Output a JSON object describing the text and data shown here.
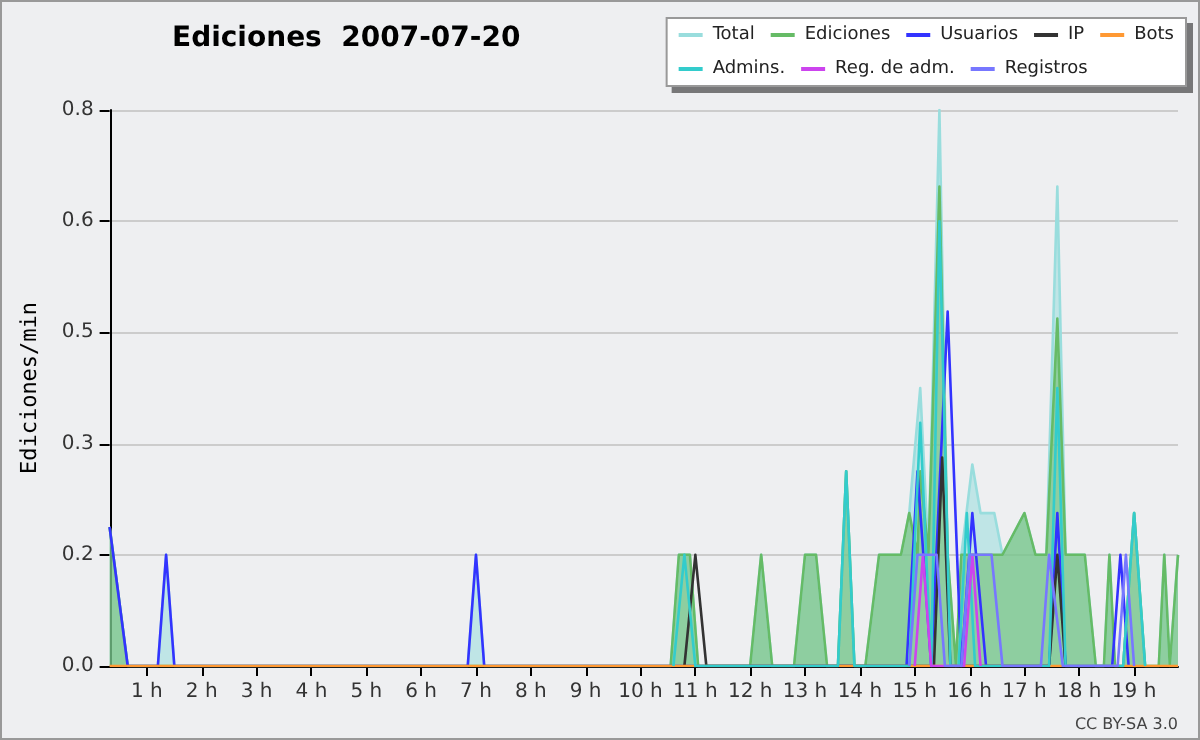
{
  "chart_data": {
    "type": "line",
    "title": "Ediciones  2007-07-20",
    "ylabel": "Ediciones/min",
    "xlim": [
      0.32,
      19.8
    ],
    "ylim": [
      0,
      0.8
    ],
    "xticks": [
      {
        "value": 1,
        "label": "1 h"
      },
      {
        "value": 2,
        "label": "2 h"
      },
      {
        "value": 3,
        "label": "3 h"
      },
      {
        "value": 4,
        "label": "4 h"
      },
      {
        "value": 5,
        "label": "5 h"
      },
      {
        "value": 6,
        "label": "6 h"
      },
      {
        "value": 7,
        "label": "7 h"
      },
      {
        "value": 8,
        "label": "8 h"
      },
      {
        "value": 9,
        "label": "9 h"
      },
      {
        "value": 10,
        "label": "10 h"
      },
      {
        "value": 11,
        "label": "11 h"
      },
      {
        "value": 12,
        "label": "12 h"
      },
      {
        "value": 13,
        "label": "13 h"
      },
      {
        "value": 14,
        "label": "14 h"
      },
      {
        "value": 15,
        "label": "15 h"
      },
      {
        "value": 16,
        "label": "16 h"
      },
      {
        "value": 17,
        "label": "17 h"
      },
      {
        "value": 18,
        "label": "18 h"
      },
      {
        "value": 19,
        "label": "19 h"
      }
    ],
    "yticks": [
      {
        "value": 0,
        "label": "0.0"
      },
      {
        "value": 0.16,
        "label": "0.2"
      },
      {
        "value": 0.32,
        "label": "0.3"
      },
      {
        "value": 0.48,
        "label": "0.5"
      },
      {
        "value": 0.64,
        "label": "0.6"
      },
      {
        "value": 0.8,
        "label": "0.8"
      }
    ],
    "grid": "y",
    "legend": "top right",
    "marker": "none",
    "line_style": "solid",
    "annotations": [
      "CC BY-SA 3.0"
    ],
    "series": [
      {
        "name": "Total",
        "type": "area",
        "color": "#99dddd",
        "x": [
          0.32,
          0.65,
          1.2,
          1.35,
          1.5,
          6.85,
          7.0,
          7.15,
          10.55,
          10.7,
          10.9,
          11.05,
          12.0,
          12.2,
          12.4,
          12.8,
          13.0,
          13.2,
          13.4,
          13.6,
          13.75,
          13.9,
          14.1,
          14.35,
          14.75,
          14.9,
          15.1,
          15.25,
          15.45,
          15.6,
          15.75,
          15.85,
          16.05,
          16.2,
          16.45,
          16.6,
          17.0,
          17.2,
          17.4,
          17.6,
          17.75,
          18.1,
          18.3,
          18.45,
          18.55,
          18.65,
          18.8,
          19.0,
          19.2,
          19.45,
          19.55,
          19.65,
          19.8
        ],
        "values": [
          0.2,
          0,
          0,
          0.16,
          0,
          0,
          0.16,
          0,
          0,
          0.16,
          0.16,
          0,
          0,
          0.16,
          0,
          0,
          0.16,
          0.16,
          0,
          0,
          0.28,
          0,
          0,
          0.16,
          0.16,
          0.22,
          0.4,
          0.16,
          0.8,
          0.16,
          0,
          0.16,
          0.29,
          0.22,
          0.22,
          0.16,
          0.22,
          0.16,
          0.16,
          0.69,
          0.16,
          0.16,
          0,
          0,
          0.16,
          0,
          0,
          0.22,
          0,
          0,
          0.16,
          0,
          0.16
        ]
      },
      {
        "name": "Ediciones",
        "type": "area",
        "color": "#66bb66",
        "x": [
          0.32,
          0.65,
          10.55,
          10.7,
          10.9,
          11.05,
          12.0,
          12.2,
          12.4,
          12.8,
          13.0,
          13.2,
          13.4,
          13.6,
          13.75,
          13.9,
          14.1,
          14.35,
          14.75,
          14.9,
          15.05,
          15.1,
          15.25,
          15.45,
          15.6,
          15.75,
          15.85,
          16.6,
          17.0,
          17.2,
          17.4,
          17.6,
          17.75,
          18.1,
          18.3,
          18.45,
          18.55,
          18.65,
          18.8,
          19.0,
          19.2,
          19.45,
          19.55,
          19.65,
          19.8
        ],
        "values": [
          0.2,
          0,
          0,
          0.16,
          0.16,
          0,
          0,
          0.16,
          0,
          0,
          0.16,
          0.16,
          0,
          0,
          0.28,
          0,
          0,
          0.16,
          0.16,
          0.22,
          0.16,
          0.28,
          0.16,
          0.69,
          0.16,
          0,
          0.16,
          0.16,
          0.22,
          0.16,
          0.16,
          0.5,
          0.16,
          0.16,
          0,
          0,
          0.16,
          0,
          0,
          0.22,
          0,
          0,
          0.16,
          0,
          0.16
        ]
      },
      {
        "name": "Usuarios",
        "color": "#3333ff",
        "x": [
          0.32,
          0.65,
          1.2,
          1.35,
          1.5,
          6.85,
          7.0,
          7.15,
          14.85,
          15.05,
          15.3,
          15.6,
          15.85,
          16.05,
          16.3,
          17.45,
          17.6,
          17.75,
          18.6,
          18.75,
          18.9
        ],
        "values": [
          0.2,
          0,
          0,
          0.16,
          0,
          0,
          0.16,
          0,
          0,
          0.28,
          0,
          0.51,
          0,
          0.22,
          0,
          0,
          0.22,
          0,
          0,
          0.16,
          0
        ]
      },
      {
        "name": "IP",
        "color": "#333333",
        "x": [
          10.8,
          11.0,
          11.2,
          15.35,
          15.5,
          15.65,
          17.45,
          17.6,
          17.75
        ],
        "values": [
          0,
          0.16,
          0,
          0,
          0.3,
          0,
          0,
          0.16,
          0
        ]
      },
      {
        "name": "Bots",
        "color": "#ff9933",
        "x": [
          0.32,
          19.8
        ],
        "values": [
          0,
          0
        ]
      },
      {
        "name": "Admins.",
        "color": "#33cccc",
        "x": [
          10.6,
          10.8,
          11.0,
          13.6,
          13.75,
          13.9,
          14.9,
          15.1,
          15.3,
          15.45,
          15.65,
          15.8,
          15.95,
          16.1,
          17.45,
          17.6,
          17.75,
          18.8,
          19.0,
          19.2
        ],
        "values": [
          0,
          0.16,
          0,
          0,
          0.28,
          0,
          0,
          0.35,
          0,
          0.64,
          0,
          0,
          0.22,
          0,
          0,
          0.4,
          0,
          0,
          0.22,
          0
        ]
      },
      {
        "name": "Reg. de adm.",
        "color": "#cc44ee",
        "x": [
          15.0,
          15.15,
          15.3,
          15.9,
          16.05,
          16.2
        ],
        "values": [
          0,
          0.16,
          0,
          0,
          0.16,
          0
        ]
      },
      {
        "name": "Registros",
        "color": "#7777ff",
        "x": [
          14.9,
          15.05,
          15.4,
          15.55,
          15.85,
          16.0,
          16.4,
          16.6,
          17.3,
          17.45,
          17.7,
          18.7,
          18.85,
          19.0
        ],
        "values": [
          0,
          0.16,
          0.16,
          0,
          0,
          0.16,
          0.16,
          0,
          0,
          0.16,
          0,
          0,
          0.16,
          0
        ]
      }
    ]
  }
}
